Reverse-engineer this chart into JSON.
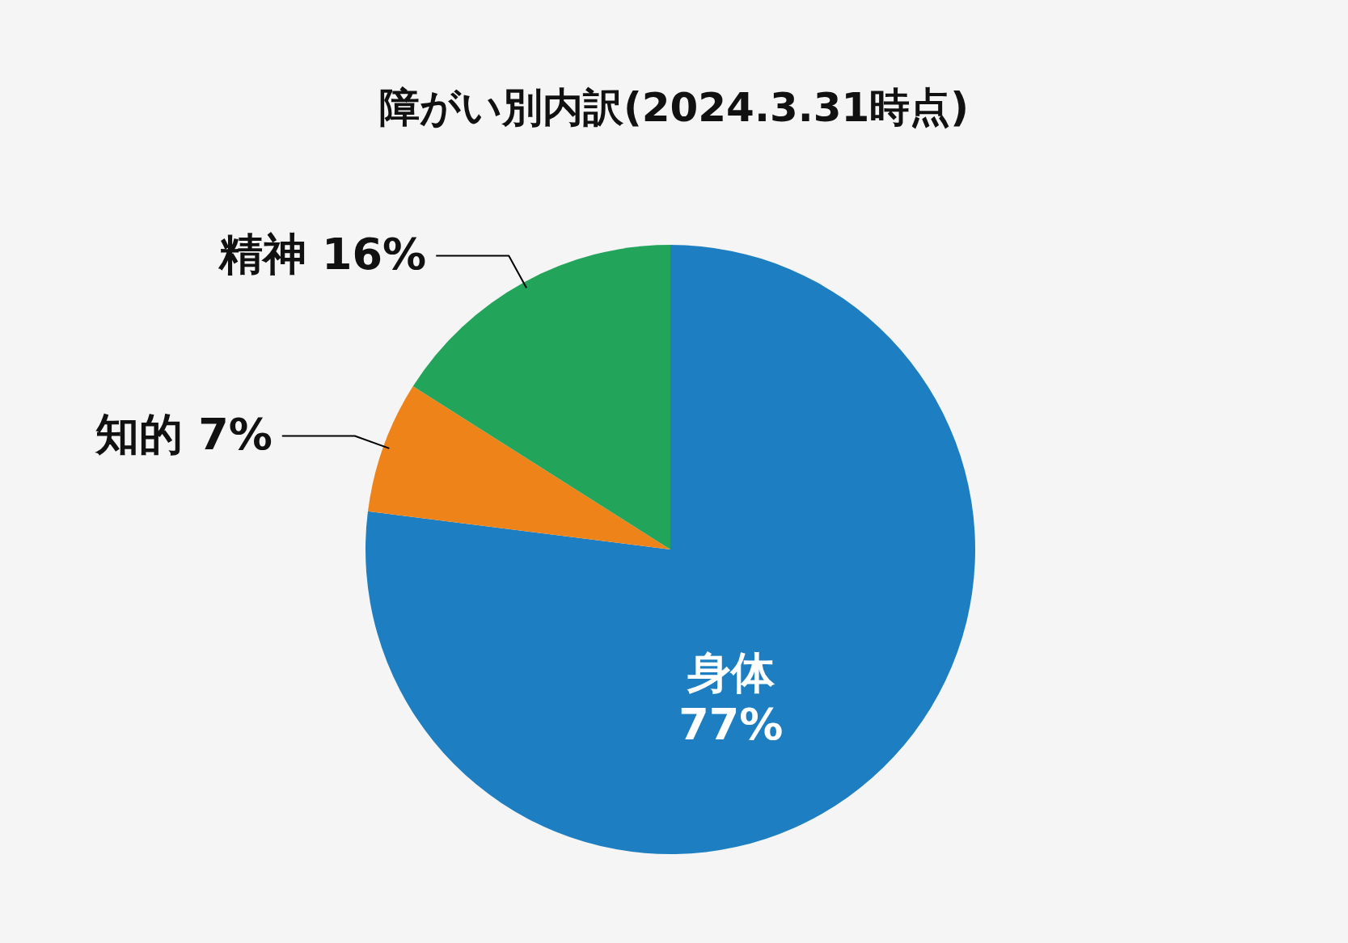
{
  "chart_data": {
    "type": "pie",
    "title": "障がい別内訳(2024.3.31時点)",
    "categories": [
      "身体",
      "知的",
      "精神"
    ],
    "values": [
      77,
      7,
      16
    ],
    "colors": [
      "#1d7fc1",
      "#ee8419",
      "#22a55b"
    ],
    "value_labels": [
      "77%",
      "7%",
      "16%"
    ]
  }
}
